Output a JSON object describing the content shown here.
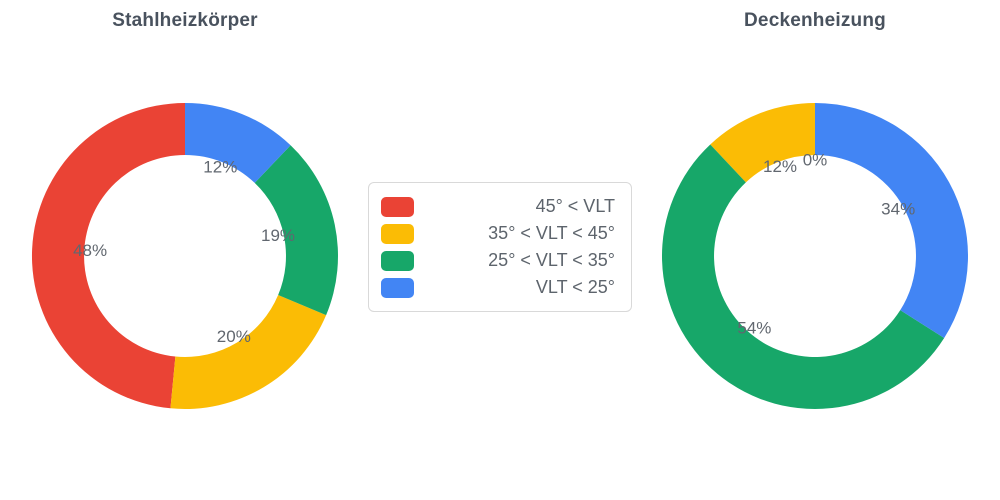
{
  "legend": {
    "items": [
      {
        "label": "45° < VLT",
        "color": "#EA4335"
      },
      {
        "label": "35° < VLT < 45°",
        "color": "#FBBC05"
      },
      {
        "label": "25° < VLT < 35°",
        "color": "#17A769"
      },
      {
        "label": "VLT < 25°",
        "color": "#4285F4"
      }
    ]
  },
  "chart_data": [
    {
      "type": "pie",
      "title": "Stahlheizkörper",
      "hole": 0.66,
      "direction": "counterclockwise",
      "start_angle_deg": 0,
      "labels": [
        "45° < VLT",
        "35° < VLT < 45°",
        "25° < VLT < 35°",
        "VLT < 25°"
      ],
      "values": [
        48,
        20,
        19,
        12
      ],
      "value_labels": [
        "48%",
        "20%",
        "19%",
        "12%"
      ],
      "colors": [
        "#EA4335",
        "#FBBC05",
        "#17A769",
        "#4285F4"
      ]
    },
    {
      "type": "pie",
      "title": "Deckenheizung",
      "hole": 0.66,
      "direction": "counterclockwise",
      "start_angle_deg": 0,
      "labels": [
        "45° < VLT",
        "35° < VLT < 45°",
        "25° < VLT < 35°",
        "VLT < 25°"
      ],
      "values": [
        0,
        12,
        54,
        34
      ],
      "value_labels": [
        "0%",
        "12%",
        "54%",
        "34%"
      ],
      "colors": [
        "#EA4335",
        "#FBBC05",
        "#17A769",
        "#4285F4"
      ]
    }
  ]
}
